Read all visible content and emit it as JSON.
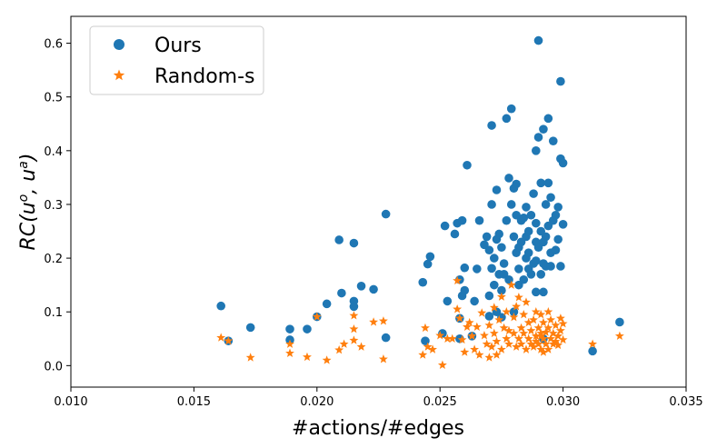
{
  "chart_data": {
    "type": "scatter",
    "xlabel": "#actions/#edges",
    "ylabel": "RC(u^o, u^a)",
    "xlim": [
      0.01,
      0.035
    ],
    "ylim": [
      -0.04,
      0.65
    ],
    "x_ticks": [
      "0.010",
      "0.015",
      "0.020",
      "0.025",
      "0.030",
      "0.035"
    ],
    "y_ticks": [
      "0.0",
      "0.1",
      "0.2",
      "0.3",
      "0.4",
      "0.5",
      "0.6"
    ],
    "grid": false,
    "legend_position": "top-left",
    "series": [
      {
        "name": "Ours",
        "marker": "circle",
        "color": "#1f77b4",
        "points": [
          [
            0.0161,
            0.111
          ],
          [
            0.0164,
            0.046
          ],
          [
            0.0173,
            0.071
          ],
          [
            0.0189,
            0.048
          ],
          [
            0.0189,
            0.068
          ],
          [
            0.0196,
            0.068
          ],
          [
            0.02,
            0.091
          ],
          [
            0.0204,
            0.115
          ],
          [
            0.0209,
            0.234
          ],
          [
            0.021,
            0.135
          ],
          [
            0.0215,
            0.228
          ],
          [
            0.0215,
            0.12
          ],
          [
            0.0215,
            0.11
          ],
          [
            0.0218,
            0.148
          ],
          [
            0.0223,
            0.142
          ],
          [
            0.0228,
            0.282
          ],
          [
            0.0228,
            0.052
          ],
          [
            0.0243,
            0.155
          ],
          [
            0.0244,
            0.046
          ],
          [
            0.0245,
            0.189
          ],
          [
            0.0246,
            0.203
          ],
          [
            0.0251,
            0.06
          ],
          [
            0.0252,
            0.26
          ],
          [
            0.0253,
            0.12
          ],
          [
            0.0256,
            0.245
          ],
          [
            0.0257,
            0.265
          ],
          [
            0.0258,
            0.16
          ],
          [
            0.0258,
            0.088
          ],
          [
            0.0258,
            0.05
          ],
          [
            0.0259,
            0.27
          ],
          [
            0.0259,
            0.13
          ],
          [
            0.026,
            0.182
          ],
          [
            0.026,
            0.14
          ],
          [
            0.0261,
            0.373
          ],
          [
            0.0263,
            0.055
          ],
          [
            0.0264,
            0.12
          ],
          [
            0.0265,
            0.18
          ],
          [
            0.0266,
            0.27
          ],
          [
            0.0268,
            0.225
          ],
          [
            0.0269,
            0.24
          ],
          [
            0.027,
            0.215
          ],
          [
            0.027,
            0.13
          ],
          [
            0.027,
            0.092
          ],
          [
            0.0271,
            0.447
          ],
          [
            0.0271,
            0.3
          ],
          [
            0.0271,
            0.181
          ],
          [
            0.0272,
            0.2
          ],
          [
            0.0272,
            0.15
          ],
          [
            0.0273,
            0.327
          ],
          [
            0.0273,
            0.235
          ],
          [
            0.0273,
            0.1
          ],
          [
            0.0274,
            0.245
          ],
          [
            0.0274,
            0.17
          ],
          [
            0.0275,
            0.22
          ],
          [
            0.0275,
            0.14
          ],
          [
            0.0275,
            0.09
          ],
          [
            0.0276,
            0.19
          ],
          [
            0.0276,
            0.17
          ],
          [
            0.0277,
            0.46
          ],
          [
            0.0277,
            0.27
          ],
          [
            0.0278,
            0.349
          ],
          [
            0.0278,
            0.16
          ],
          [
            0.0279,
            0.478
          ],
          [
            0.0279,
            0.3
          ],
          [
            0.028,
            0.33
          ],
          [
            0.028,
            0.24
          ],
          [
            0.028,
            0.1
          ],
          [
            0.0281,
            0.338
          ],
          [
            0.0281,
            0.28
          ],
          [
            0.0281,
            0.21
          ],
          [
            0.0282,
            0.18
          ],
          [
            0.0282,
            0.15
          ],
          [
            0.0282,
            0.22
          ],
          [
            0.0283,
            0.27
          ],
          [
            0.0283,
            0.23
          ],
          [
            0.0284,
            0.275
          ],
          [
            0.0284,
            0.16
          ],
          [
            0.0285,
            0.295
          ],
          [
            0.0285,
            0.24
          ],
          [
            0.0285,
            0.2
          ],
          [
            0.0286,
            0.25
          ],
          [
            0.0286,
            0.21
          ],
          [
            0.0286,
            0.18
          ],
          [
            0.0287,
            0.28
          ],
          [
            0.0287,
            0.17
          ],
          [
            0.0288,
            0.32
          ],
          [
            0.0288,
            0.19
          ],
          [
            0.0289,
            0.4
          ],
          [
            0.0289,
            0.265
          ],
          [
            0.0289,
            0.23
          ],
          [
            0.0289,
            0.195
          ],
          [
            0.0289,
            0.137
          ],
          [
            0.029,
            0.425
          ],
          [
            0.029,
            0.605
          ],
          [
            0.029,
            0.22
          ],
          [
            0.0291,
            0.34
          ],
          [
            0.0291,
            0.25
          ],
          [
            0.0291,
            0.17
          ],
          [
            0.0292,
            0.44
          ],
          [
            0.0292,
            0.23
          ],
          [
            0.0292,
            0.19
          ],
          [
            0.0292,
            0.137
          ],
          [
            0.0293,
            0.3
          ],
          [
            0.0293,
            0.24
          ],
          [
            0.0293,
            0.185
          ],
          [
            0.0294,
            0.46
          ],
          [
            0.0294,
            0.34
          ],
          [
            0.0294,
            0.26
          ],
          [
            0.0295,
            0.313
          ],
          [
            0.0295,
            0.21
          ],
          [
            0.0295,
            0.185
          ],
          [
            0.0296,
            0.418
          ],
          [
            0.0296,
            0.27
          ],
          [
            0.0297,
            0.28
          ],
          [
            0.0297,
            0.215
          ],
          [
            0.0298,
            0.295
          ],
          [
            0.0298,
            0.235
          ],
          [
            0.0299,
            0.385
          ],
          [
            0.0299,
            0.185
          ],
          [
            0.0299,
            0.529
          ],
          [
            0.03,
            0.377
          ],
          [
            0.03,
            0.263
          ],
          [
            0.0292,
            0.05
          ],
          [
            0.0312,
            0.027
          ],
          [
            0.0323,
            0.081
          ]
        ]
      },
      {
        "name": "Random-s",
        "marker": "star",
        "color": "#ff7f0e",
        "points": [
          [
            0.0161,
            0.052
          ],
          [
            0.0164,
            0.046
          ],
          [
            0.0173,
            0.015
          ],
          [
            0.0189,
            0.04
          ],
          [
            0.0189,
            0.023
          ],
          [
            0.0196,
            0.016
          ],
          [
            0.02,
            0.091
          ],
          [
            0.0204,
            0.01
          ],
          [
            0.0209,
            0.029
          ],
          [
            0.0211,
            0.04
          ],
          [
            0.0215,
            0.093
          ],
          [
            0.0215,
            0.068
          ],
          [
            0.0215,
            0.047
          ],
          [
            0.0218,
            0.035
          ],
          [
            0.0223,
            0.081
          ],
          [
            0.0227,
            0.083
          ],
          [
            0.0227,
            0.012
          ],
          [
            0.0243,
            0.02
          ],
          [
            0.0244,
            0.07
          ],
          [
            0.0245,
            0.035
          ],
          [
            0.0247,
            0.03
          ],
          [
            0.025,
            0.056
          ],
          [
            0.0251,
            0.001
          ],
          [
            0.0253,
            0.05
          ],
          [
            0.0255,
            0.05
          ],
          [
            0.0257,
            0.158
          ],
          [
            0.0257,
            0.105
          ],
          [
            0.0258,
            0.088
          ],
          [
            0.0259,
            0.048
          ],
          [
            0.026,
            0.025
          ],
          [
            0.0261,
            0.072
          ],
          [
            0.0262,
            0.08
          ],
          [
            0.0263,
            0.055
          ],
          [
            0.0264,
            0.03
          ],
          [
            0.0265,
            0.072
          ],
          [
            0.0266,
            0.02
          ],
          [
            0.0267,
            0.098
          ],
          [
            0.0268,
            0.056
          ],
          [
            0.0269,
            0.04
          ],
          [
            0.027,
            0.015
          ],
          [
            0.027,
            0.075
          ],
          [
            0.0271,
            0.035
          ],
          [
            0.0272,
            0.108
          ],
          [
            0.0272,
            0.06
          ],
          [
            0.0273,
            0.045
          ],
          [
            0.0273,
            0.02
          ],
          [
            0.0274,
            0.085
          ],
          [
            0.0275,
            0.128
          ],
          [
            0.0275,
            0.03
          ],
          [
            0.0276,
            0.07
          ],
          [
            0.0277,
            0.05
          ],
          [
            0.0277,
            0.1
          ],
          [
            0.0278,
            0.04
          ],
          [
            0.0278,
            0.065
          ],
          [
            0.0279,
            0.15
          ],
          [
            0.028,
            0.06
          ],
          [
            0.028,
            0.09
          ],
          [
            0.0281,
            0.035
          ],
          [
            0.0281,
            0.11
          ],
          [
            0.0282,
            0.05
          ],
          [
            0.0282,
            0.127
          ],
          [
            0.0283,
            0.07
          ],
          [
            0.0283,
            0.04
          ],
          [
            0.0284,
            0.06
          ],
          [
            0.0284,
            0.095
          ],
          [
            0.0285,
            0.03
          ],
          [
            0.0285,
            0.118
          ],
          [
            0.0286,
            0.05
          ],
          [
            0.0286,
            0.08
          ],
          [
            0.0287,
            0.04
          ],
          [
            0.0287,
            0.065
          ],
          [
            0.0288,
            0.035
          ],
          [
            0.0288,
            0.085
          ],
          [
            0.0289,
            0.055
          ],
          [
            0.0289,
            0.1
          ],
          [
            0.029,
            0.04
          ],
          [
            0.029,
            0.07
          ],
          [
            0.0291,
            0.03
          ],
          [
            0.0291,
            0.06
          ],
          [
            0.0291,
            0.095
          ],
          [
            0.0292,
            0.05
          ],
          [
            0.0292,
            0.025
          ],
          [
            0.0292,
            0.08
          ],
          [
            0.0293,
            0.04
          ],
          [
            0.0293,
            0.062
          ],
          [
            0.0294,
            0.03
          ],
          [
            0.0294,
            0.07
          ],
          [
            0.0294,
            0.1
          ],
          [
            0.0295,
            0.05
          ],
          [
            0.0295,
            0.085
          ],
          [
            0.0296,
            0.04
          ],
          [
            0.0296,
            0.06
          ],
          [
            0.0297,
            0.045
          ],
          [
            0.0297,
            0.075
          ],
          [
            0.0298,
            0.055
          ],
          [
            0.0298,
            0.038
          ],
          [
            0.0299,
            0.065
          ],
          [
            0.0299,
            0.088
          ],
          [
            0.03,
            0.048
          ],
          [
            0.03,
            0.078
          ],
          [
            0.0289,
            0.045
          ],
          [
            0.0291,
            0.055
          ],
          [
            0.0312,
            0.04
          ],
          [
            0.0323,
            0.055
          ]
        ]
      }
    ]
  }
}
